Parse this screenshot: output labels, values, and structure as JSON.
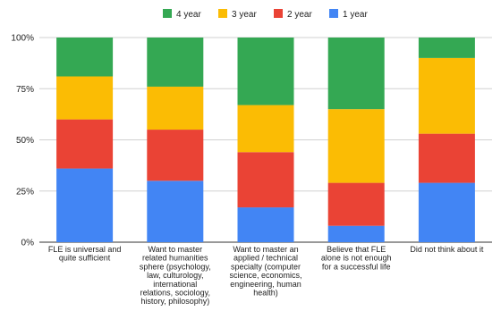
{
  "chart_data": {
    "type": "bar",
    "stacked": true,
    "normalized": true,
    "categories": [
      [
        "FLE is universal and",
        "quite sufficient"
      ],
      [
        "Want to master",
        "related humanities",
        "sphere (psychology,",
        "law, culturology,",
        "international",
        "relations, sociology,",
        "history, philosophy)"
      ],
      [
        "Want to master an",
        "applied / technical",
        "specialty (computer",
        "science, economics,",
        "engineering, human",
        "health)"
      ],
      [
        "Believe that FLE",
        "alone is not enough",
        "for a successful life"
      ],
      [
        "Did not think about it"
      ]
    ],
    "series": [
      {
        "name": "1 year",
        "color": "#4285F4",
        "values": [
          36,
          30,
          17,
          8,
          29
        ]
      },
      {
        "name": "2 year",
        "color": "#EA4335",
        "values": [
          24,
          25,
          27,
          21,
          24
        ]
      },
      {
        "name": "3 year",
        "color": "#FBBC04",
        "values": [
          21,
          21,
          23,
          36,
          37
        ]
      },
      {
        "name": "4 year",
        "color": "#34A853",
        "values": [
          19,
          24,
          33,
          35,
          10
        ]
      }
    ],
    "legend_order": [
      "4 year",
      "3 year",
      "2 year",
      "1 year"
    ],
    "legend_position": "top",
    "y_ticks": [
      "0%",
      "25%",
      "50%",
      "75%",
      "100%"
    ],
    "ylim": [
      0,
      100
    ],
    "grid": true
  }
}
